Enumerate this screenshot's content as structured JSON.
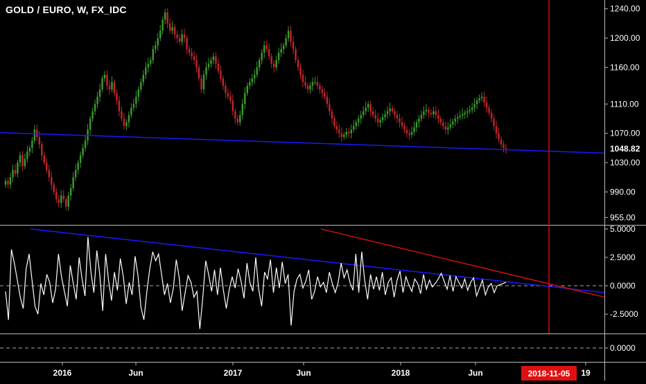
{
  "header": {
    "title": "GOLD / EURO, W, FX_IDC"
  },
  "colors": {
    "background": "#000000",
    "up_candle": "#3c9a2e",
    "down_candle": "#c0262c",
    "trendline_blue": "#1a1aff",
    "trendline_red": "#cc1111",
    "oscillator": "#ffffff",
    "date_marker_bg": "#e01010"
  },
  "price_axis": {
    "ticks": [
      "1240.00",
      "1200.00",
      "1160.00",
      "1110.00",
      "1070.00",
      "1030.00",
      "990.00",
      "955.00"
    ],
    "last_price": "1048.82"
  },
  "osc_axis": {
    "ticks": [
      "5.0000",
      "2.5000",
      "0.0000",
      "-2.5000"
    ]
  },
  "third_axis": {
    "ticks": [
      "0.0000"
    ]
  },
  "time_axis": {
    "ticks": [
      "2016",
      "Jun",
      "2017",
      "Jun",
      "2018",
      "Jun",
      "19"
    ],
    "marker_label": "2018-11-05"
  },
  "chart_data": [
    {
      "type": "candlestick",
      "title": "GOLD / EURO, W, FX_IDC",
      "ylim": [
        945,
        1252
      ],
      "x_start": "2015-08",
      "x_step": "1 week",
      "close": [
        1005,
        1000,
        1010,
        1020,
        1015,
        1030,
        1040,
        1025,
        1035,
        1045,
        1050,
        1060,
        1075,
        1065,
        1055,
        1040,
        1030,
        1020,
        1010,
        1000,
        990,
        980,
        975,
        985,
        980,
        970,
        985,
        995,
        1010,
        1020,
        1030,
        1040,
        1050,
        1060,
        1075,
        1090,
        1100,
        1110,
        1120,
        1130,
        1145,
        1150,
        1135,
        1130,
        1140,
        1125,
        1115,
        1100,
        1090,
        1080,
        1085,
        1095,
        1105,
        1110,
        1120,
        1130,
        1140,
        1150,
        1160,
        1165,
        1170,
        1185,
        1190,
        1200,
        1210,
        1225,
        1235,
        1220,
        1210,
        1215,
        1205,
        1200,
        1195,
        1205,
        1200,
        1185,
        1180,
        1175,
        1170,
        1160,
        1145,
        1130,
        1150,
        1160,
        1165,
        1170,
        1175,
        1165,
        1155,
        1145,
        1135,
        1125,
        1120,
        1115,
        1100,
        1090,
        1085,
        1095,
        1110,
        1125,
        1135,
        1140,
        1145,
        1150,
        1160,
        1170,
        1180,
        1190,
        1185,
        1175,
        1165,
        1160,
        1170,
        1180,
        1185,
        1190,
        1200,
        1210,
        1195,
        1185,
        1170,
        1160,
        1150,
        1140,
        1135,
        1130,
        1135,
        1140,
        1140,
        1135,
        1130,
        1125,
        1120,
        1110,
        1100,
        1090,
        1080,
        1075,
        1070,
        1065,
        1068,
        1072,
        1070,
        1075,
        1080,
        1085,
        1090,
        1095,
        1100,
        1105,
        1110,
        1100,
        1095,
        1090,
        1085,
        1088,
        1092,
        1096,
        1100,
        1104,
        1100,
        1095,
        1090,
        1085,
        1080,
        1075,
        1070,
        1068,
        1072,
        1078,
        1085,
        1090,
        1095,
        1100,
        1102,
        1098,
        1096,
        1100,
        1095,
        1090,
        1085,
        1080,
        1075,
        1078,
        1082,
        1086,
        1090,
        1092,
        1094,
        1096,
        1098,
        1100,
        1102,
        1105,
        1110,
        1115,
        1118,
        1120,
        1112,
        1105,
        1098,
        1090,
        1080,
        1070,
        1062,
        1055,
        1050,
        1048.82
      ],
      "series": [
        {
          "name": "GOLD / EURO",
          "last": 1048.82
        }
      ]
    },
    {
      "type": "line",
      "ylim": [
        -4.2,
        5.3
      ],
      "zero_line": 0,
      "values": [
        -0.5,
        -3.0,
        3.2,
        2.0,
        0.5,
        -1.0,
        -2.0,
        1.5,
        2.8,
        0.5,
        -1.8,
        -2.5,
        0.2,
        -0.8,
        1.0,
        0.3,
        -1.5,
        -0.3,
        2.8,
        0.8,
        -0.5,
        -1.8,
        1.8,
        0.2,
        -1.2,
        2.5,
        0.6,
        -0.9,
        4.3,
        1.2,
        -0.6,
        3.1,
        1.0,
        -2.2,
        2.8,
        0.5,
        -1.3,
        1.2,
        -0.4,
        2.4,
        0.8,
        -1.6,
        0.3,
        -0.8,
        2.6,
        0.9,
        -1.9,
        -3.0,
        -0.5,
        1.5,
        3.0,
        2.2,
        2.8,
        1.0,
        -0.8,
        0.2,
        -1.5,
        -0.2,
        2.3,
        0.7,
        -2.2,
        -0.6,
        0.9,
        0.3,
        -1.0,
        -0.5,
        -3.8,
        -1.0,
        2.2,
        1.0,
        -0.5,
        1.4,
        -0.8,
        1.6,
        -0.4,
        -2.0,
        -0.3,
        0.8,
        -0.2,
        1.5,
        0.4,
        -1.1,
        2.0,
        0.3,
        -0.5,
        2.5,
        -0.3,
        -1.8,
        1.2,
        0.6,
        2.3,
        -0.6,
        1.6,
        -0.2,
        2.1,
        0.2,
        1.0,
        -3.5,
        -0.5,
        0.6,
        1.0,
        -0.2,
        0.4,
        1.4,
        -1.2,
        -0.5,
        0.8,
        -0.1,
        0.3,
        -0.6,
        1.2,
        0.2,
        -0.6,
        0.3,
        2.0,
        0.7,
        1.4,
        0.3,
        -0.4,
        2.8,
        -0.6,
        3.0,
        0.5,
        -1.2,
        1.0,
        -0.3,
        0.8,
        -0.4,
        1.2,
        -0.8,
        0.3,
        0.7,
        -1.0,
        0.5,
        1.3,
        -0.6,
        0.8,
        0.1,
        -0.5,
        0.6,
        0.2,
        -0.7,
        1.0,
        -0.3,
        0.5,
        -0.1,
        0.2,
        0.6,
        1.1,
        0.4,
        -0.3,
        0.9,
        -0.5,
        0.8,
        0.3,
        -0.2,
        0.6,
        -0.4,
        0.3,
        0.7,
        -0.9,
        -0.2,
        0.5,
        -0.8,
        -0.1,
        0.2,
        -0.6,
        0.0,
        0.1,
        0.2,
        0.3
      ],
      "series": [
        {
          "name": "oscillator"
        }
      ]
    }
  ]
}
